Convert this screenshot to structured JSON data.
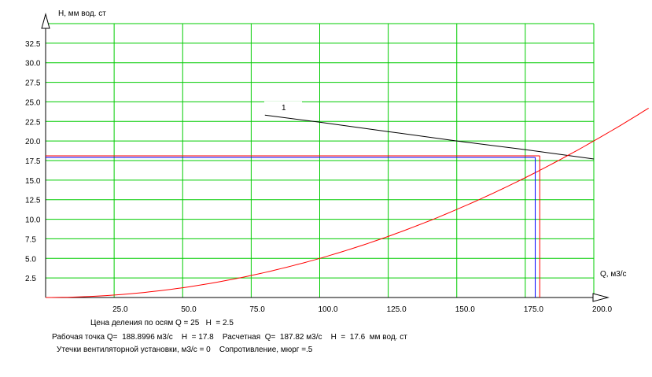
{
  "chart_data": {
    "type": "line",
    "xlabel": "Q, м3/с",
    "ylabel": "H, мм вод. ст",
    "xlim": [
      0,
      200
    ],
    "ylim": [
      0,
      35
    ],
    "x_ticks": [
      "25.0",
      "50.0",
      "75.0",
      "100.0",
      "125.0",
      "150.0",
      "175.0",
      "200.0"
    ],
    "y_ticks": [
      "2.5",
      "5.0",
      "7.5",
      "10.0",
      "12.5",
      "15.0",
      "17.5",
      "20.0",
      "22.5",
      "25.0",
      "27.5",
      "30.0",
      "32.5"
    ],
    "grid": true,
    "series": [
      {
        "name": "1",
        "color": "#000000",
        "x": [
          80,
          100,
          125,
          150,
          175,
          200
        ],
        "y": [
          23.3,
          22.4,
          21.2,
          20.0,
          18.9,
          17.7
        ]
      },
      {
        "color": "#ff0000",
        "x": [
          0,
          25,
          50,
          75,
          100,
          125,
          150,
          175,
          200,
          220
        ],
        "y": [
          0,
          0.3,
          1.2,
          2.7,
          5.0,
          7.8,
          11.2,
          15.2,
          20.0,
          24.6
        ]
      }
    ],
    "markers": {
      "working_point": {
        "x": 188.8996,
        "y": 17.8,
        "color": "#ff0000"
      },
      "design_point": {
        "x": 187.82,
        "y": 17.6,
        "color": "#0000ff"
      }
    },
    "grid_color": "#00cc00"
  },
  "info": {
    "line1": "Цена деления по осям Q = 25   H  = 2.5",
    "line2": "Рабочая точка Q=  188.8996 м3/с    H  = 17.8    Расчетная  Q=  187.82 м3/с    H  =  17.6  мм вод. ст",
    "line3": "Утечки вентиляторной установки, м3/с = 0    Сопротивление, мюрг =.5"
  }
}
